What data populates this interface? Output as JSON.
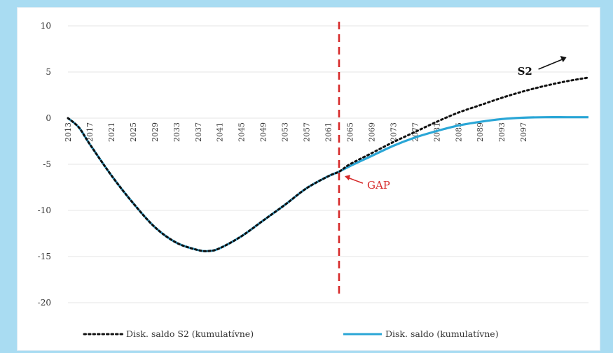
{
  "header": {
    "title_fragment": ""
  },
  "chart_data": {
    "type": "line",
    "title": "",
    "xlabel": "",
    "ylabel": "",
    "xlim": [
      2013,
      2109
    ],
    "ylim": [
      -20,
      10
    ],
    "y_ticks": [
      10,
      5,
      0,
      -5,
      -10,
      -15,
      -20
    ],
    "y_tick_labels": [
      "10",
      "5",
      "0",
      "-5",
      "-10",
      "-15",
      "-20"
    ],
    "x_tick_labels": [
      "2013",
      "2017",
      "2021",
      "2025",
      "2029",
      "2033",
      "2037",
      "2041",
      "2045",
      "2049",
      "2053",
      "2057",
      "2061",
      "2065",
      "2069",
      "2073",
      "2077",
      "2081",
      "2085",
      "2089",
      "2093",
      "2097"
    ],
    "x_tick_values": [
      2013,
      2017,
      2021,
      2025,
      2029,
      2033,
      2037,
      2041,
      2045,
      2049,
      2053,
      2057,
      2061,
      2065,
      2069,
      2073,
      2077,
      2081,
      2085,
      2089,
      2093,
      2097
    ],
    "grid": "horizontal",
    "legend_position": "bottom",
    "colors": {
      "s2": "#111111",
      "saldo": "#2aa6d6",
      "gap": "#d62a2a"
    },
    "series": [
      {
        "name": "Disk. saldo S2 (kumulatívne)",
        "style": "dotted",
        "color": "#111111",
        "x": [
          2013,
          2015,
          2017,
          2021,
          2025,
          2029,
          2033,
          2037,
          2039,
          2041,
          2045,
          2049,
          2053,
          2057,
          2061,
          2063,
          2065,
          2069,
          2073,
          2077,
          2081,
          2085,
          2089,
          2093,
          2097,
          2101,
          2105,
          2109
        ],
        "y": [
          0,
          -1,
          -2.8,
          -6.2,
          -9.2,
          -11.8,
          -13.5,
          -14.3,
          -14.4,
          -14.1,
          -12.8,
          -11.1,
          -9.4,
          -7.6,
          -6.3,
          -5.8,
          -5.0,
          -3.8,
          -2.6,
          -1.5,
          -0.4,
          0.6,
          1.4,
          2.2,
          2.9,
          3.5,
          4.0,
          4.4
        ]
      },
      {
        "name": "Disk. saldo (kumulatívne)",
        "style": "solid",
        "color": "#2aa6d6",
        "x": [
          2013,
          2015,
          2017,
          2021,
          2025,
          2029,
          2033,
          2037,
          2039,
          2041,
          2045,
          2049,
          2053,
          2057,
          2061,
          2063,
          2065,
          2069,
          2073,
          2077,
          2081,
          2085,
          2089,
          2093,
          2097,
          2101,
          2105,
          2109
        ],
        "y": [
          0,
          -1,
          -2.8,
          -6.2,
          -9.2,
          -11.8,
          -13.5,
          -14.3,
          -14.4,
          -14.1,
          -12.8,
          -11.1,
          -9.4,
          -7.6,
          -6.3,
          -5.8,
          -5.2,
          -4.1,
          -3.0,
          -2.1,
          -1.4,
          -0.8,
          -0.4,
          -0.1,
          0.05,
          0.1,
          0.1,
          0.1
        ]
      }
    ],
    "vline": {
      "x": 2063,
      "color": "#d62a2a",
      "style": "dashed"
    },
    "annotations": [
      {
        "id": "gap",
        "text": "GAP",
        "x": 2063,
        "y": -6.3,
        "color": "#d62a2a"
      },
      {
        "id": "s2",
        "text": "S2",
        "x": 2099,
        "y": 5,
        "color": "#111111"
      }
    ]
  }
}
